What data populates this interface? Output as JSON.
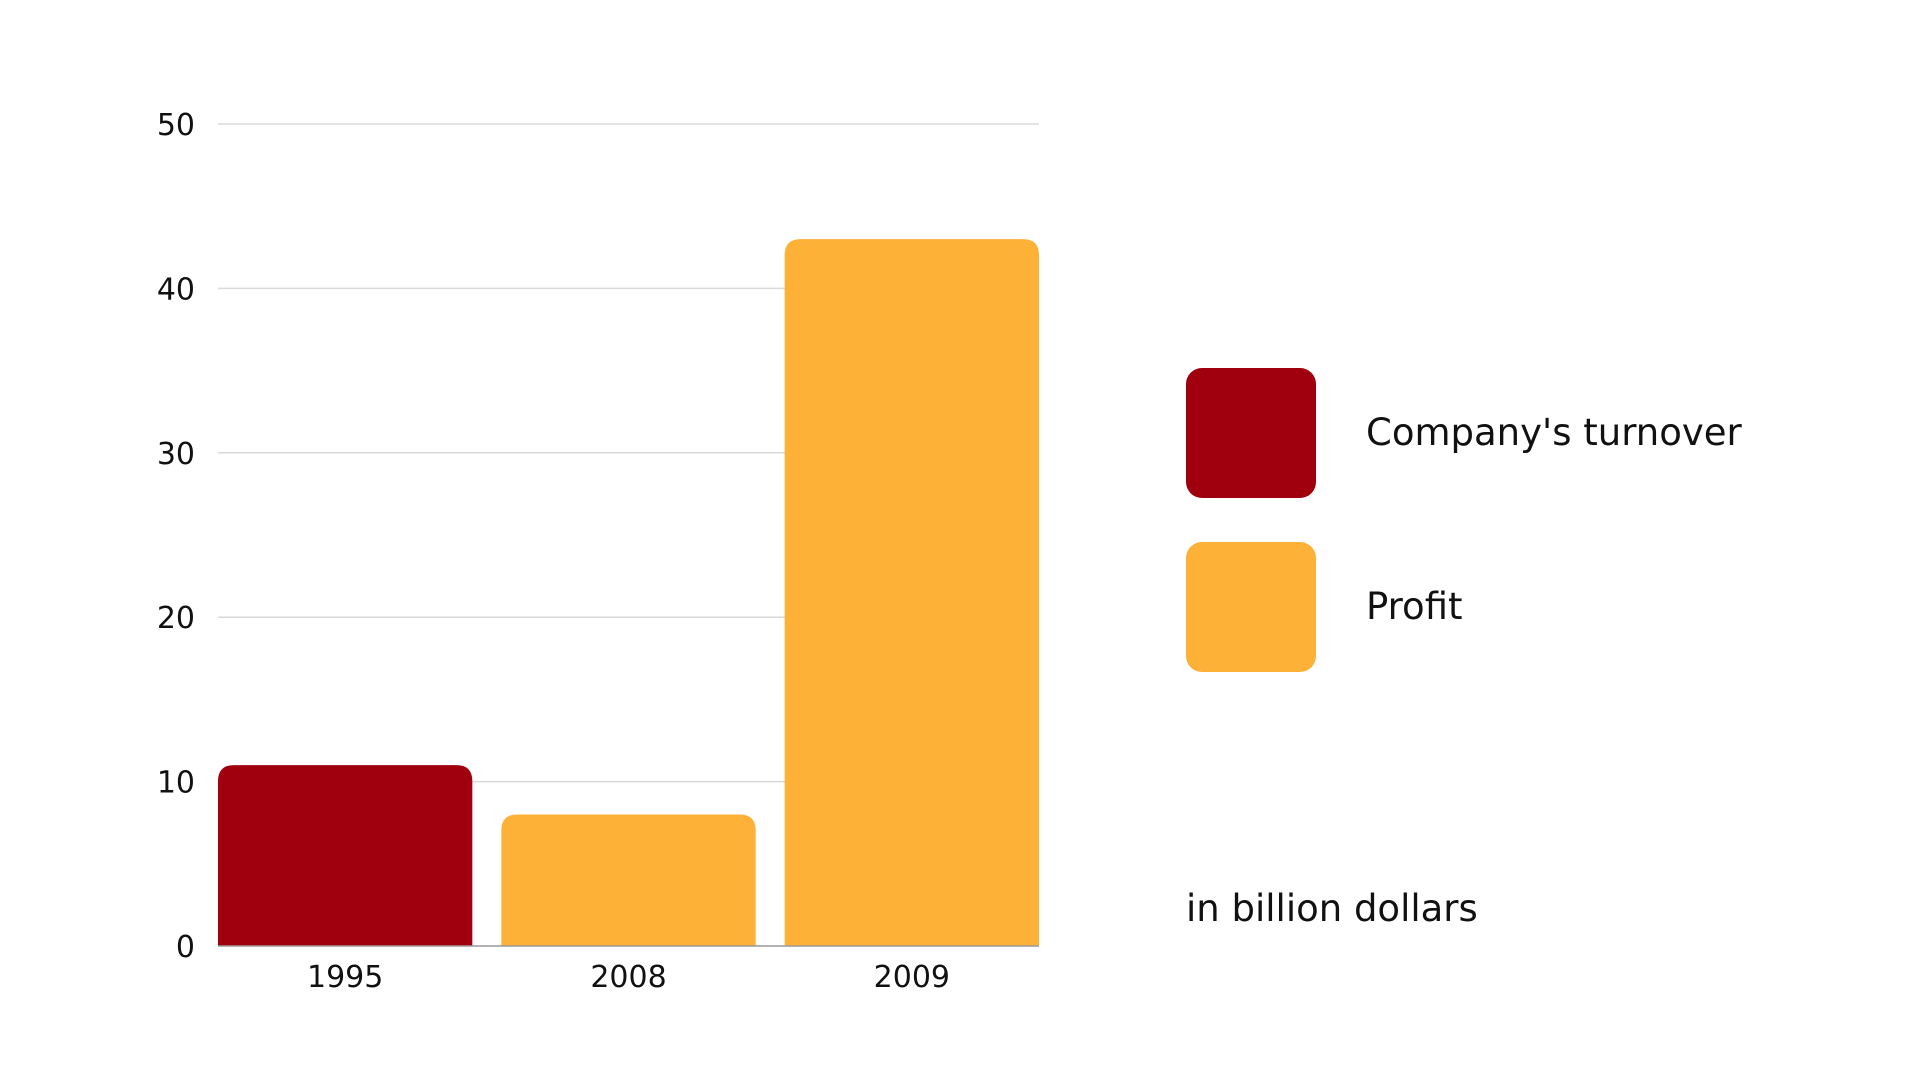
{
  "chart_data": {
    "type": "bar",
    "categories": [
      "1995",
      "2008",
      "2009"
    ],
    "values": [
      11,
      8,
      43
    ],
    "bar_series": [
      "Company's turnover",
      "Profit",
      "Profit"
    ],
    "ylim": [
      0,
      50
    ],
    "yticks": [
      "0",
      "10",
      "20",
      "30",
      "40",
      "50"
    ],
    "grid": true,
    "legend_position": "right",
    "series": [
      {
        "name": "Company's turnover",
        "color": "#A0000D"
      },
      {
        "name": "Profit",
        "color": "#FDB137"
      }
    ],
    "unit_note": "in billion dollars"
  }
}
